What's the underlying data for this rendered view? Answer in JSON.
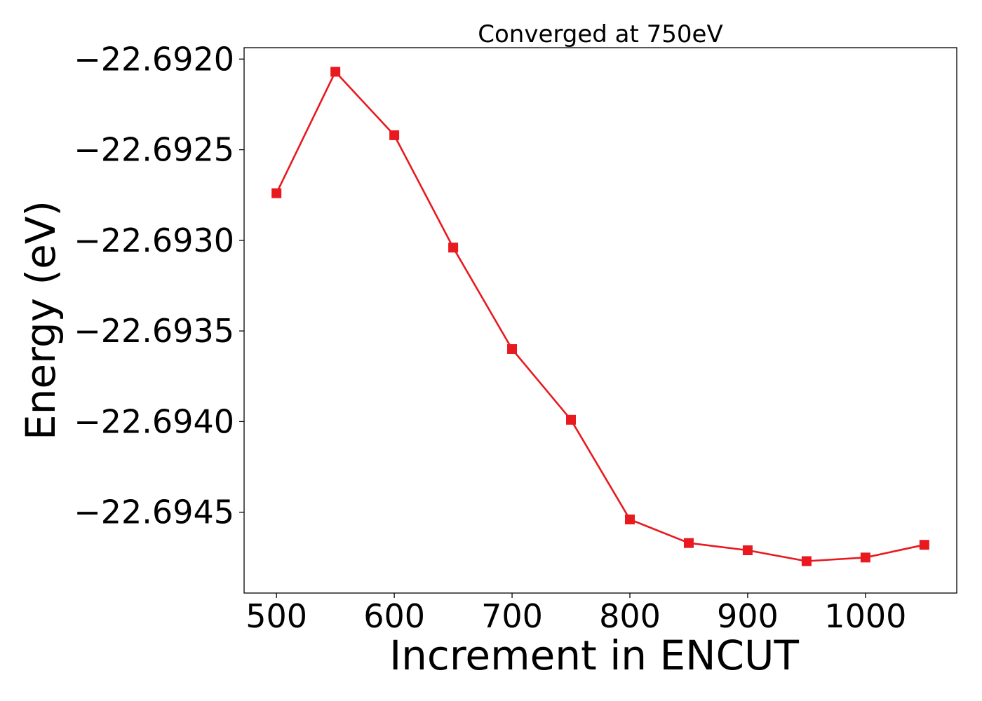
{
  "chart_data": {
    "type": "line",
    "title": "Converged at 750eV",
    "xlabel": "Increment in ENCUT",
    "ylabel": "Energy (eV)",
    "xlim": [
      472.5,
      1077.5
    ],
    "ylim": [
      -22.694946,
      -22.691937
    ],
    "xticks": [
      500,
      600,
      700,
      800,
      900,
      1000
    ],
    "xtick_labels": [
      "500",
      "600",
      "700",
      "800",
      "900",
      "1000"
    ],
    "yticks": [
      -22.692,
      -22.6925,
      -22.693,
      -22.6935,
      -22.694,
      -22.6945
    ],
    "ytick_labels": [
      "−22.6920",
      "−22.6925",
      "−22.6930",
      "−22.6935",
      "−22.6940",
      "−22.6945"
    ],
    "grid": false,
    "legend": "none",
    "series": [
      {
        "color": "#e8191f",
        "marker": "square",
        "x": [
          500,
          550,
          600,
          650,
          700,
          750,
          800,
          850,
          900,
          950,
          1000,
          1050
        ],
        "y": [
          -22.69274,
          -22.69207,
          -22.69242,
          -22.69304,
          -22.6936,
          -22.69399,
          -22.69454,
          -22.69467,
          -22.69471,
          -22.69477,
          -22.69475,
          -22.69468
        ]
      }
    ]
  }
}
